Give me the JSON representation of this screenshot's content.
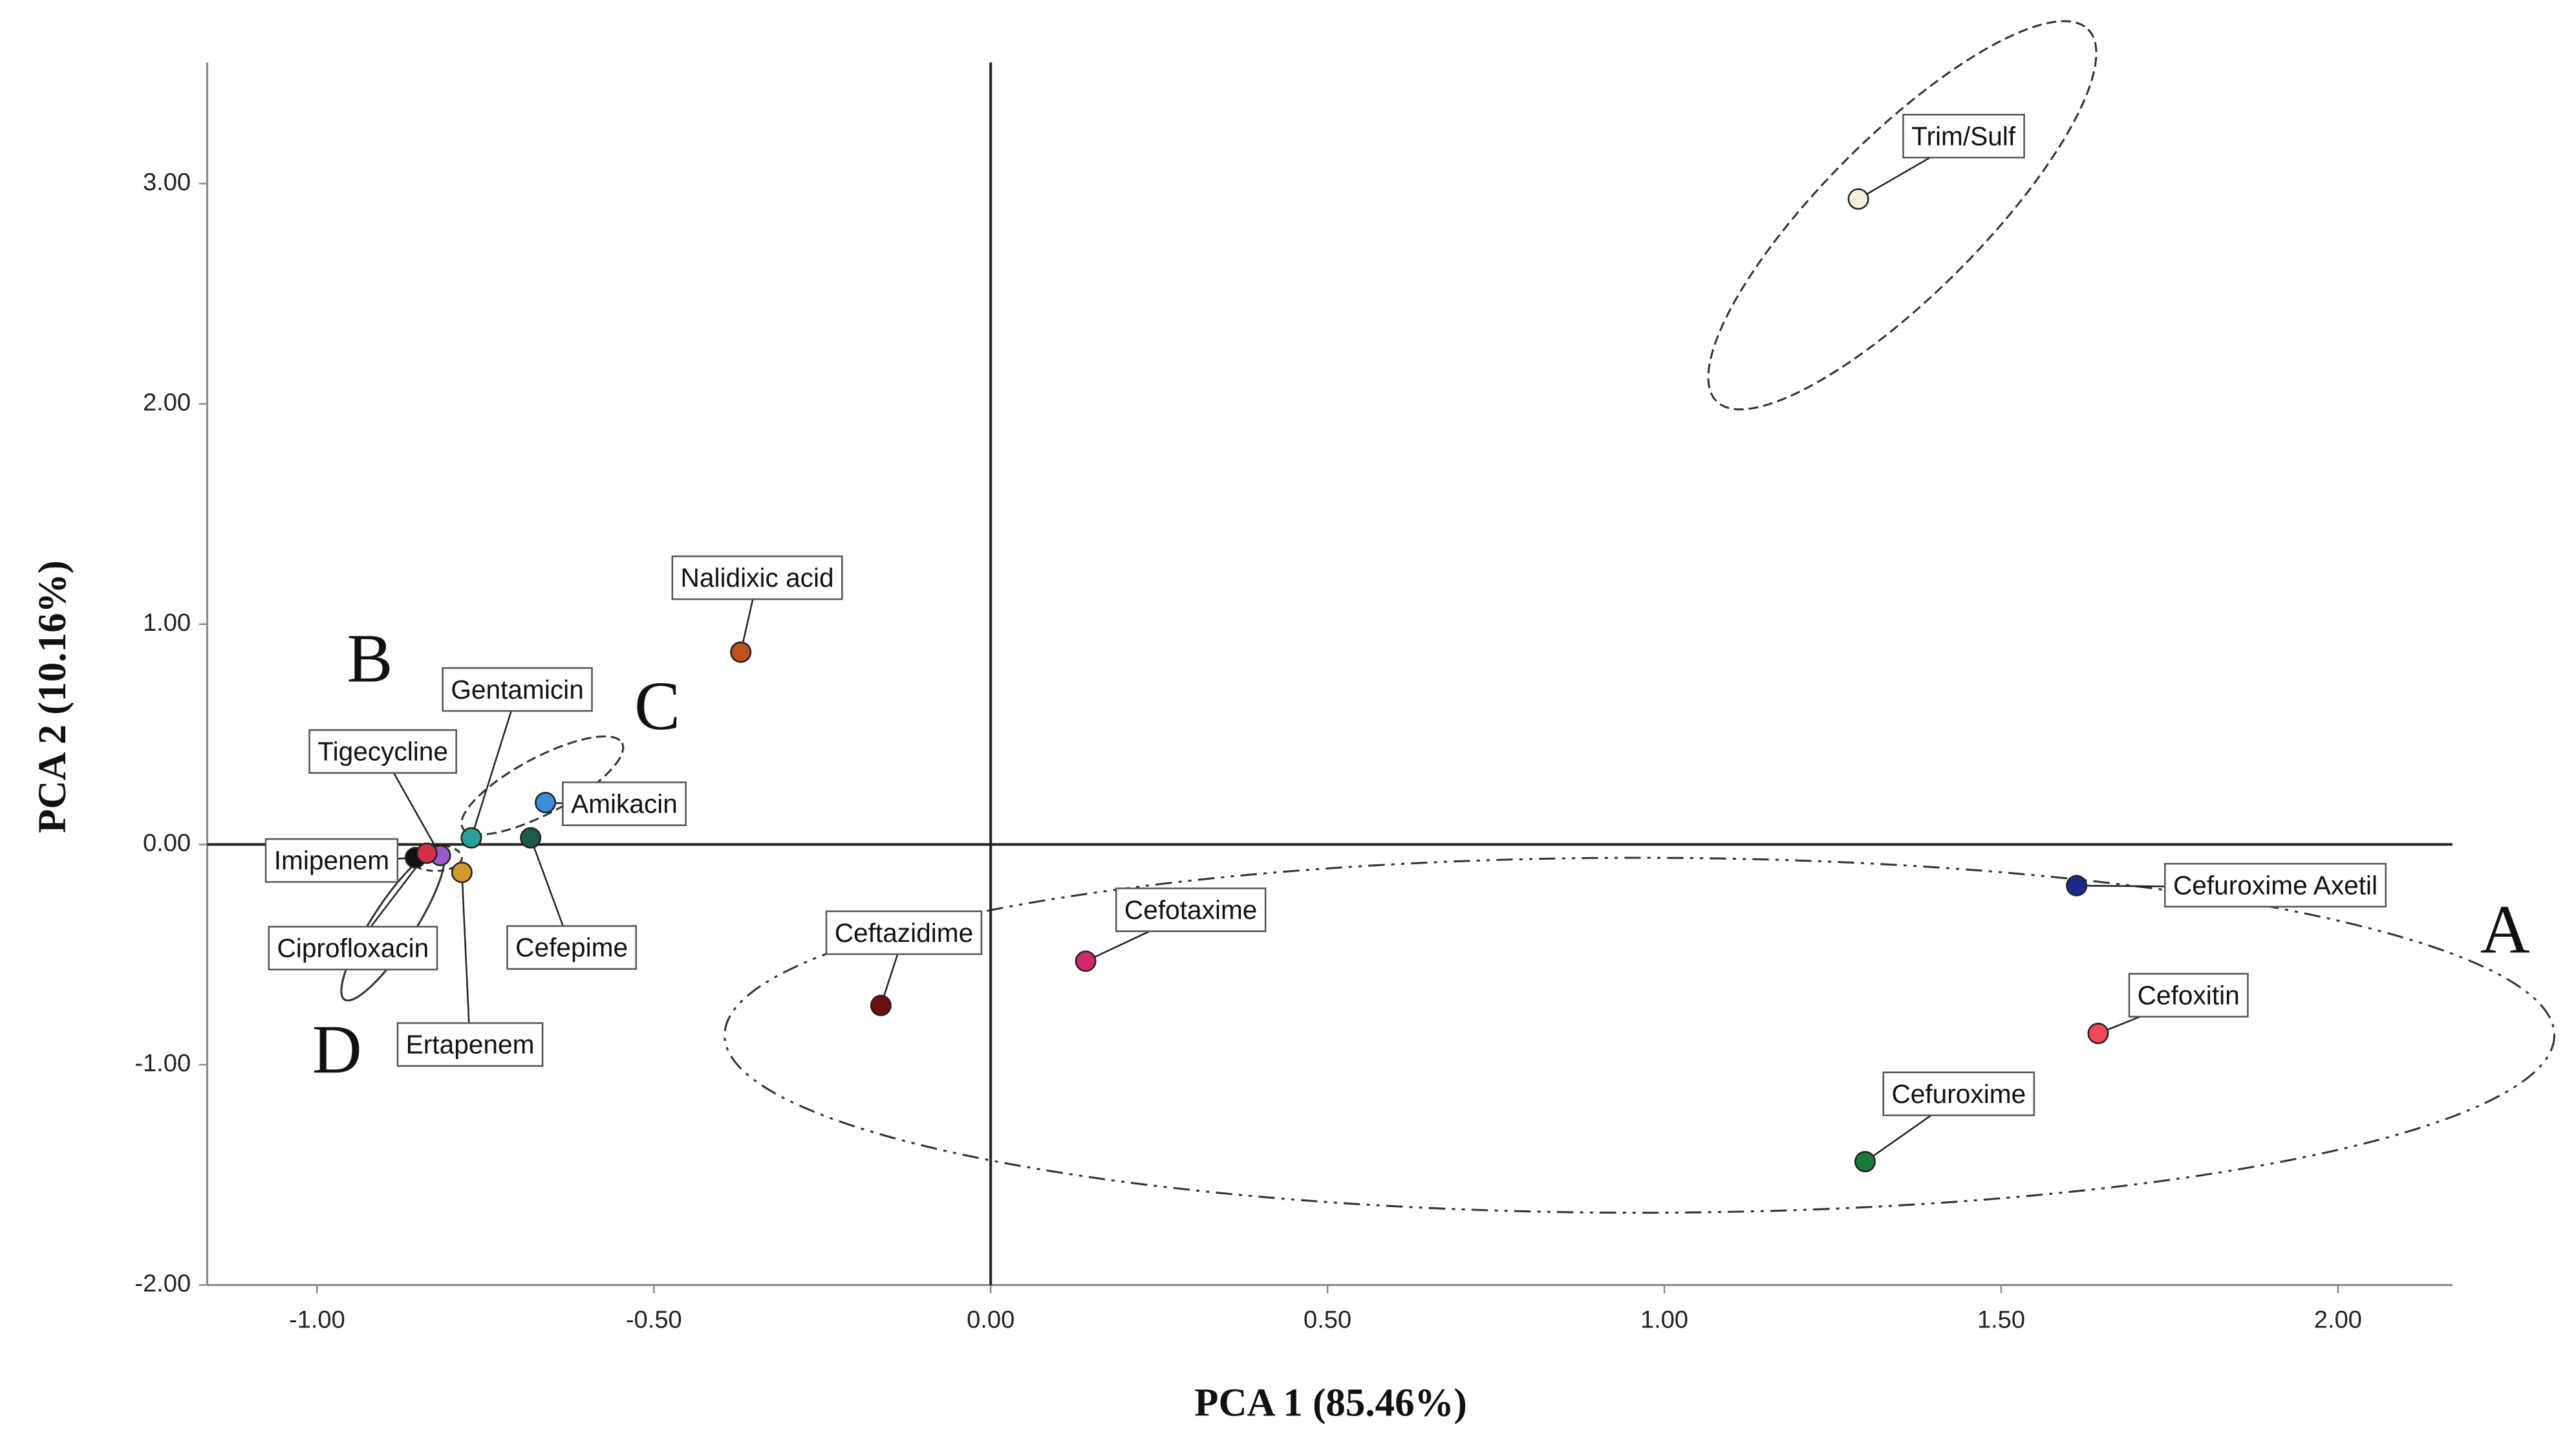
{
  "chart_data": {
    "type": "scatter",
    "x_label": "PCA 1 (85.46%)",
    "y_label": "PCA 2 (10.16%)",
    "xlim": [
      -1.163,
      2.17
    ],
    "ylim": [
      -2.0,
      3.55
    ],
    "xticks": [
      {
        "value": -1,
        "label": "-1.00"
      },
      {
        "value": -0.5,
        "label": "-0.50"
      },
      {
        "value": 0,
        "label": "0.00"
      },
      {
        "value": 0.5,
        "label": "0.50"
      },
      {
        "value": 1,
        "label": "1.00"
      },
      {
        "value": 1.5,
        "label": "1.50"
      },
      {
        "value": 2,
        "label": "2.00"
      }
    ],
    "yticks": [
      {
        "value": -2,
        "label": "-2.00"
      },
      {
        "value": -1,
        "label": "-1.00"
      },
      {
        "value": 0,
        "label": "0.00"
      },
      {
        "value": 1,
        "label": "1.00"
      },
      {
        "value": 2,
        "label": "2.00"
      },
      {
        "value": 3,
        "label": "3.00"
      }
    ],
    "point_labels": [
      "Trim/Sulf",
      "Nalidixic acid",
      "Gentamicin",
      "Amikacin",
      "Cefepime",
      "Tigecycline",
      "Imipenem",
      "Ciprofloxacin",
      "Ertapenem",
      "Ceftazidime",
      "Cefotaxime",
      "Cefuroxime Axetil",
      "Cefoxitin",
      "Cefuroxime"
    ],
    "x": [
      1.288,
      -0.371,
      -0.771,
      -0.661,
      -0.683,
      -0.817,
      -0.854,
      -0.837,
      -0.785,
      -0.163,
      0.141,
      1.612,
      1.644,
      1.298
    ],
    "values": [
      2.93,
      0.873,
      0.03,
      0.19,
      0.03,
      -0.05,
      -0.06,
      -0.04,
      -0.127,
      -0.731,
      -0.53,
      -0.187,
      -0.858,
      -1.44
    ],
    "colors": [
      "#f5efdc",
      "#c0501e",
      "#2aa198",
      "#3b8fd6",
      "#1f5a4f",
      "#9b59d0",
      "#111111",
      "#d0304a",
      "#d29a2a",
      "#6b1010",
      "#d0286a",
      "#1a2a8a",
      "#f04a5a",
      "#1a7a3a"
    ],
    "annotations": [
      "A",
      "B",
      "C",
      "D"
    ]
  }
}
